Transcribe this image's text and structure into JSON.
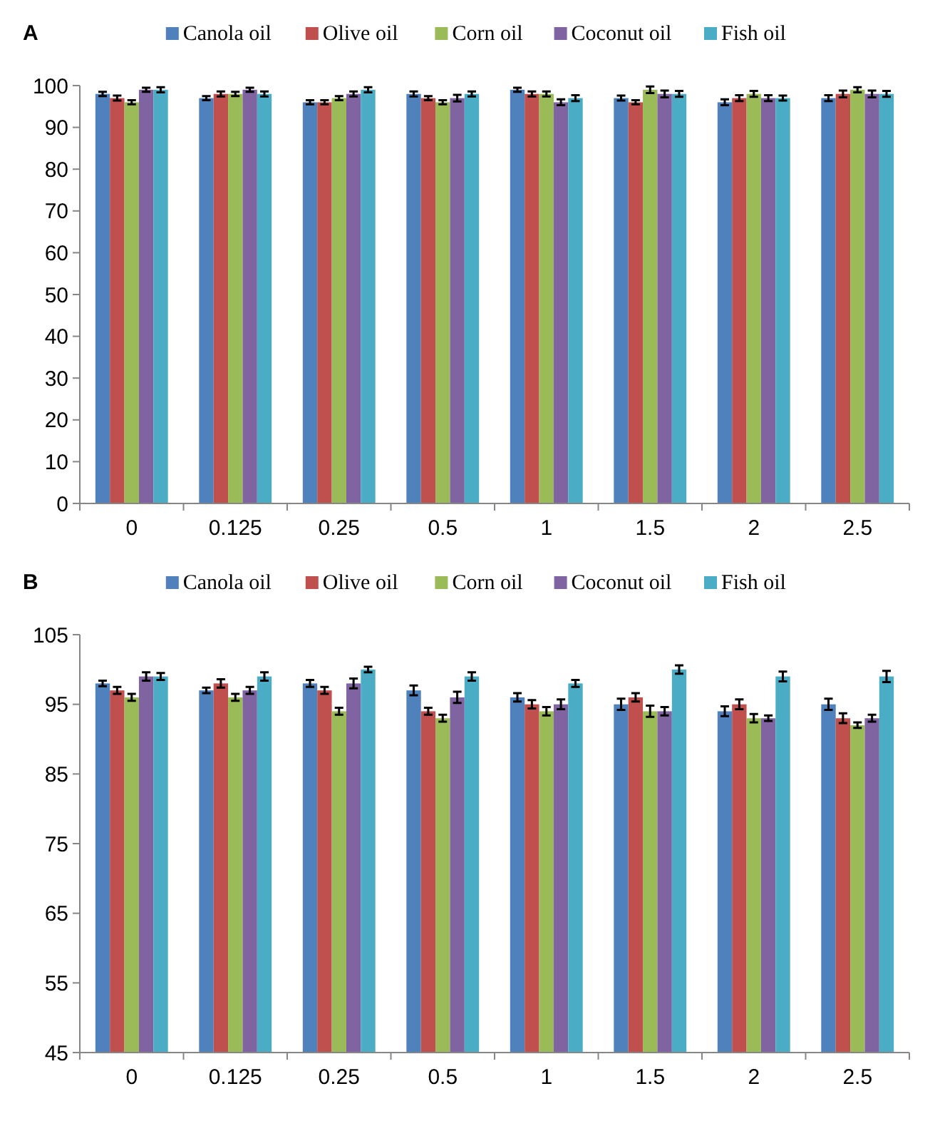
{
  "chart_data": [
    {
      "type": "bar",
      "title": "A",
      "categories": [
        "0",
        "0.125",
        "0.25",
        "0.5",
        "1",
        "1.5",
        "2",
        "2.5"
      ],
      "ylim": [
        0,
        100
      ],
      "yticks": [
        0,
        10,
        20,
        30,
        40,
        50,
        60,
        70,
        80,
        90,
        100
      ],
      "grid": false,
      "legend": "top",
      "series": [
        {
          "name": "Canola oil",
          "color": "#4f81bd",
          "values": [
            98,
            97,
            96,
            98,
            99,
            97,
            96,
            97
          ],
          "errors": [
            0.5,
            0.5,
            0.5,
            0.6,
            0.5,
            0.6,
            0.7,
            0.7
          ]
        },
        {
          "name": "Olive oil",
          "color": "#c0504d",
          "values": [
            97,
            98,
            96,
            97,
            98,
            96,
            97,
            98
          ],
          "errors": [
            0.6,
            0.6,
            0.5,
            0.5,
            0.6,
            0.5,
            0.7,
            0.8
          ]
        },
        {
          "name": "Corn oil",
          "color": "#9bbb59",
          "values": [
            96,
            98,
            97,
            96,
            98,
            99,
            98,
            99
          ],
          "errors": [
            0.5,
            0.5,
            0.5,
            0.5,
            0.6,
            0.8,
            0.7,
            0.6
          ]
        },
        {
          "name": "Coconut oil",
          "color": "#8064a2",
          "values": [
            99,
            99,
            98,
            97,
            96,
            98,
            97,
            98
          ],
          "errors": [
            0.5,
            0.5,
            0.6,
            0.8,
            0.7,
            0.8,
            0.7,
            0.8
          ]
        },
        {
          "name": "Fish oil",
          "color": "#4bacc6",
          "values": [
            99,
            98,
            99,
            98,
            97,
            98,
            97,
            98
          ],
          "errors": [
            0.6,
            0.6,
            0.6,
            0.6,
            0.7,
            0.7,
            0.6,
            0.7
          ]
        }
      ]
    },
    {
      "type": "bar",
      "title": "B",
      "categories": [
        "0",
        "0.125",
        "0.25",
        "0.5",
        "1",
        "1.5",
        "2",
        "2.5"
      ],
      "ylim": [
        45,
        105
      ],
      "yticks": [
        45,
        55,
        65,
        75,
        85,
        95,
        105
      ],
      "grid": false,
      "legend": "top",
      "series": [
        {
          "name": "Canola oil",
          "color": "#4f81bd",
          "values": [
            98,
            97,
            98,
            97,
            96,
            95,
            94,
            95
          ],
          "errors": [
            0.4,
            0.4,
            0.5,
            0.7,
            0.6,
            0.8,
            0.7,
            0.8
          ]
        },
        {
          "name": "Olive oil",
          "color": "#c0504d",
          "values": [
            97,
            98,
            97,
            94,
            95,
            96,
            95,
            93
          ],
          "errors": [
            0.5,
            0.6,
            0.5,
            0.5,
            0.6,
            0.6,
            0.7,
            0.7
          ]
        },
        {
          "name": "Corn oil",
          "color": "#9bbb59",
          "values": [
            96,
            96,
            94,
            93,
            94,
            94,
            93,
            92
          ],
          "errors": [
            0.5,
            0.5,
            0.5,
            0.5,
            0.6,
            0.8,
            0.6,
            0.4
          ]
        },
        {
          "name": "Coconut oil",
          "color": "#8064a2",
          "values": [
            99,
            97,
            98,
            96,
            95,
            94,
            93,
            93
          ],
          "errors": [
            0.6,
            0.5,
            0.7,
            0.8,
            0.7,
            0.6,
            0.4,
            0.5
          ]
        },
        {
          "name": "Fish oil",
          "color": "#4bacc6",
          "values": [
            99,
            99,
            100,
            99,
            98,
            100,
            99,
            99
          ],
          "errors": [
            0.5,
            0.6,
            0.4,
            0.6,
            0.5,
            0.6,
            0.7,
            0.8
          ]
        }
      ]
    }
  ]
}
